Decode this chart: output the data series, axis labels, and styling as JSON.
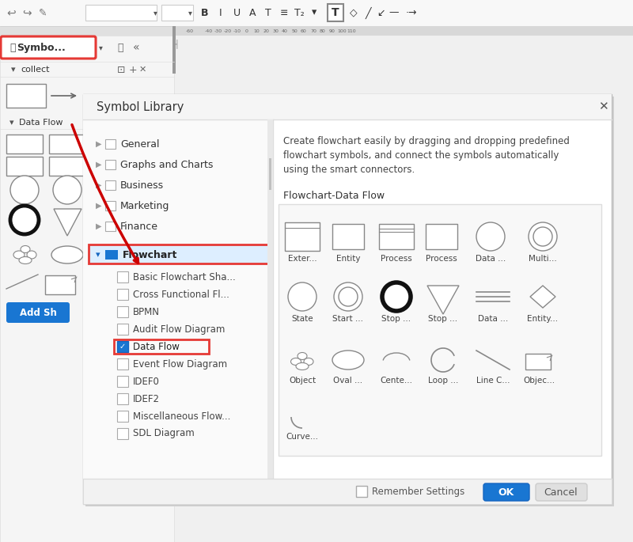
{
  "bg_color": "#f0f0f0",
  "title": "Symbol Library",
  "description_line1": "Create flowchart easily by dragging and dropping predefined",
  "description_line2": "flowchart symbols, and connect the symbols automatically",
  "description_line3": "using the smart connectors.",
  "section_title": "Flowchart-Data Flow",
  "categories": [
    "General",
    "Graphs and Charts",
    "Business",
    "Marketing",
    "Finance",
    "Flowchart"
  ],
  "subcategories": [
    "Basic Flowchart Sha...",
    "Cross Functional Fl...",
    "BPMN",
    "Audit Flow Diagram",
    "Data Flow",
    "Event Flow Diagram",
    "IDEF0",
    "IDEF2",
    "Miscellaneous Flow...",
    "SDL Diagram"
  ],
  "row1_labels": [
    "Exter...",
    "Entity",
    "Process",
    "Process",
    "Data ...",
    "Multi..."
  ],
  "row2_labels": [
    "State",
    "Start ...",
    "Stop ...",
    "Stop ...",
    "Data ...",
    "Entity..."
  ],
  "row3_labels": [
    "Object",
    "Oval ...",
    "Cente...",
    "Loop ...",
    "Line C...",
    "Objec..."
  ],
  "row4_labels": [
    "Curve..."
  ],
  "highlight_red": "#e53935",
  "ok_button_color": "#1976d2",
  "toolbar_bg": "#e8e8e8",
  "ruler_bg": "#d0d0d0",
  "sidebar_bg": "#f5f5f5",
  "dialog_bg": "#ffffff",
  "left_cat_bg": "#fafafa",
  "symbol_grid_bg": "#f8f8f8",
  "bottom_bar_bg": "#f0f0f0",
  "flowchart_row_bg": "#ddeeff",
  "symbo_btn_red_border": "#e53935",
  "dataflow_check_color": "#1976d2",
  "arrow_color": "#cc0000"
}
